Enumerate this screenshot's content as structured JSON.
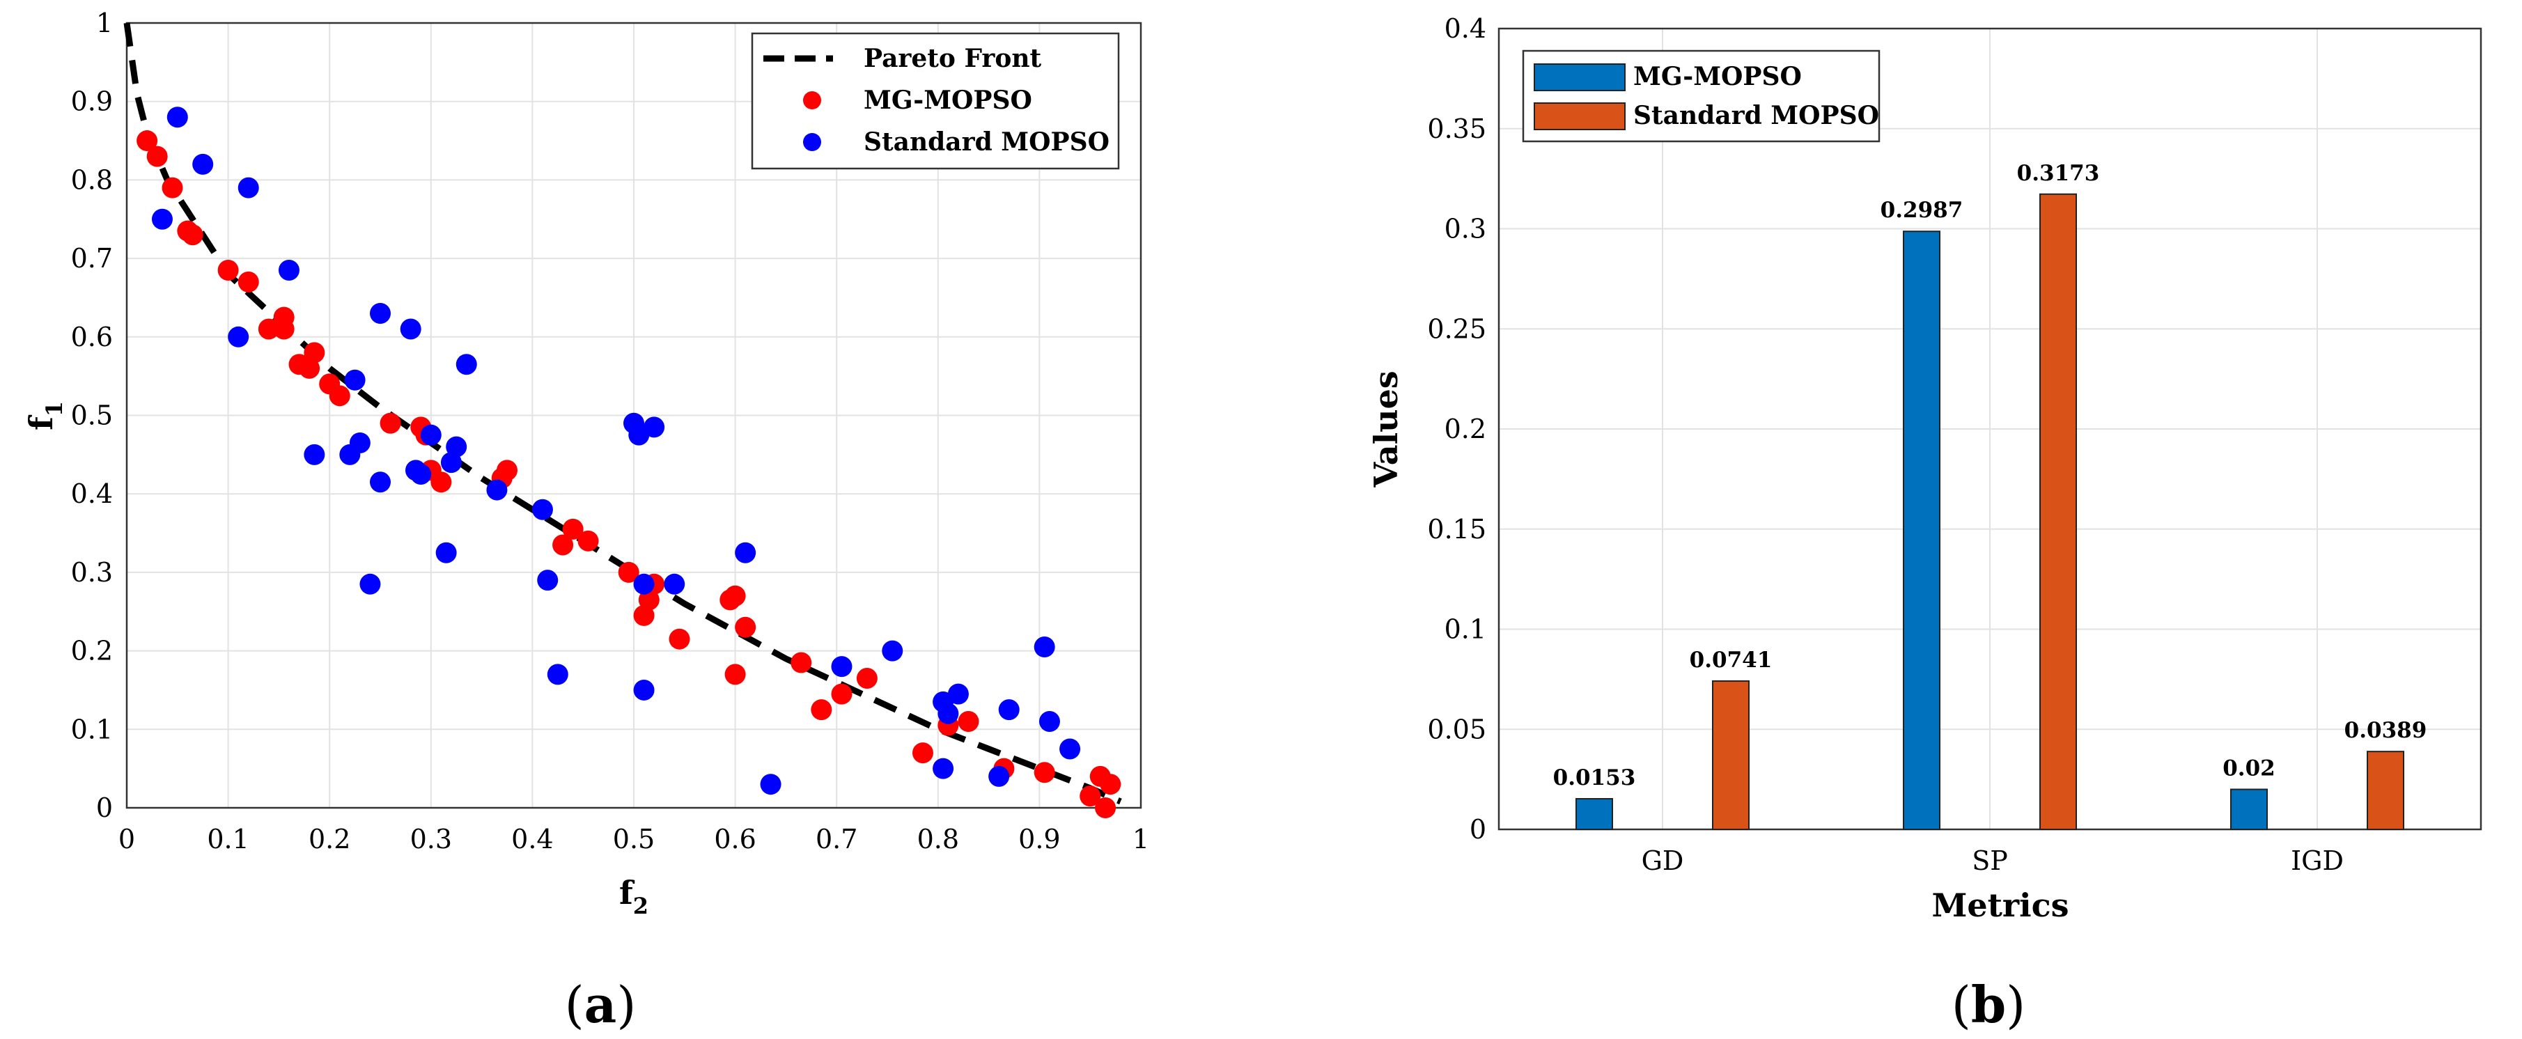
{
  "chart_data": [
    {
      "type": "scatter",
      "title": "",
      "xlabel": "f",
      "xlabel_sub": "2",
      "ylabel": "f",
      "ylabel_sub": "1",
      "xlim": [
        0,
        1
      ],
      "ylim": [
        0,
        1
      ],
      "xticks": [
        "0",
        "0.1",
        "0.2",
        "0.3",
        "0.4",
        "0.5",
        "0.6",
        "0.7",
        "0.8",
        "0.9",
        "1"
      ],
      "yticks": [
        "0",
        "0.1",
        "0.2",
        "0.3",
        "0.4",
        "0.5",
        "0.6",
        "0.7",
        "0.8",
        "0.9",
        "1"
      ],
      "grid": true,
      "legend_position": "top-right",
      "caption_open": "(",
      "caption_letter": "a",
      "caption_close": ")",
      "series": [
        {
          "name": "Pareto Front",
          "style": "dashed-line",
          "color": "#000000",
          "x": [
            0.0,
            0.01,
            0.02,
            0.04,
            0.06,
            0.08,
            0.1,
            0.15,
            0.2,
            0.25,
            0.3,
            0.35,
            0.4,
            0.45,
            0.5,
            0.55,
            0.6,
            0.65,
            0.7,
            0.75,
            0.8,
            0.85,
            0.9,
            0.95,
            0.98
          ],
          "y": [
            1.0,
            0.91,
            0.86,
            0.8,
            0.76,
            0.72,
            0.68,
            0.62,
            0.56,
            0.51,
            0.465,
            0.42,
            0.38,
            0.34,
            0.3,
            0.26,
            0.225,
            0.19,
            0.16,
            0.13,
            0.1,
            0.075,
            0.05,
            0.025,
            0.008
          ]
        },
        {
          "name": "MG-MOPSO",
          "style": "marker",
          "color": "#ff0000",
          "x": [
            0.02,
            0.03,
            0.045,
            0.06,
            0.065,
            0.1,
            0.12,
            0.14,
            0.155,
            0.155,
            0.17,
            0.18,
            0.185,
            0.2,
            0.21,
            0.26,
            0.29,
            0.295,
            0.3,
            0.31,
            0.37,
            0.375,
            0.43,
            0.44,
            0.455,
            0.495,
            0.51,
            0.515,
            0.52,
            0.545,
            0.595,
            0.6,
            0.6,
            0.61,
            0.665,
            0.685,
            0.705,
            0.73,
            0.785,
            0.81,
            0.83,
            0.865,
            0.905,
            0.95,
            0.96,
            0.965,
            0.97
          ],
          "y": [
            0.85,
            0.83,
            0.79,
            0.735,
            0.73,
            0.685,
            0.67,
            0.61,
            0.625,
            0.61,
            0.565,
            0.56,
            0.58,
            0.54,
            0.525,
            0.49,
            0.485,
            0.475,
            0.43,
            0.415,
            0.42,
            0.43,
            0.335,
            0.355,
            0.34,
            0.3,
            0.245,
            0.265,
            0.285,
            0.215,
            0.265,
            0.27,
            0.17,
            0.23,
            0.185,
            0.125,
            0.145,
            0.165,
            0.07,
            0.105,
            0.11,
            0.05,
            0.045,
            0.015,
            0.04,
            0.0,
            0.03
          ]
        },
        {
          "name": "Standard MOPSO",
          "style": "marker",
          "color": "#0000ff",
          "x": [
            0.035,
            0.05,
            0.075,
            0.11,
            0.12,
            0.16,
            0.185,
            0.22,
            0.225,
            0.23,
            0.24,
            0.25,
            0.25,
            0.28,
            0.285,
            0.29,
            0.3,
            0.315,
            0.32,
            0.325,
            0.335,
            0.365,
            0.41,
            0.415,
            0.425,
            0.5,
            0.505,
            0.51,
            0.51,
            0.52,
            0.54,
            0.61,
            0.635,
            0.705,
            0.755,
            0.805,
            0.805,
            0.81,
            0.82,
            0.86,
            0.87,
            0.905,
            0.91,
            0.93
          ],
          "y": [
            0.75,
            0.88,
            0.82,
            0.6,
            0.79,
            0.685,
            0.45,
            0.45,
            0.545,
            0.465,
            0.285,
            0.415,
            0.63,
            0.61,
            0.43,
            0.425,
            0.475,
            0.325,
            0.44,
            0.46,
            0.565,
            0.405,
            0.38,
            0.29,
            0.17,
            0.49,
            0.475,
            0.285,
            0.15,
            0.485,
            0.285,
            0.325,
            0.03,
            0.18,
            0.2,
            0.05,
            0.135,
            0.12,
            0.145,
            0.04,
            0.125,
            0.205,
            0.11,
            0.075
          ]
        }
      ]
    },
    {
      "type": "bar",
      "title": "",
      "xlabel": "Metrics",
      "ylabel": "Values",
      "categories": [
        "GD",
        "SP",
        "IGD"
      ],
      "ylim": [
        0,
        0.4
      ],
      "yticks": [
        "0",
        "0.05",
        "0.1",
        "0.15",
        "0.2",
        "0.25",
        "0.3",
        "0.35",
        "0.4"
      ],
      "grid": true,
      "legend_position": "top-left",
      "caption_open": "(",
      "caption_letter": "b",
      "caption_close": ")",
      "series": [
        {
          "name": "MG-MOPSO",
          "color": "#0072bd",
          "values": [
            0.0153,
            0.2987,
            0.02
          ],
          "labels": [
            "0.0153",
            "0.2987",
            "0.02"
          ]
        },
        {
          "name": "Standard MOPSO",
          "color": "#d95319",
          "values": [
            0.0741,
            0.3173,
            0.0389
          ],
          "labels": [
            "0.0741",
            "0.3173",
            "0.0389"
          ]
        }
      ]
    }
  ]
}
